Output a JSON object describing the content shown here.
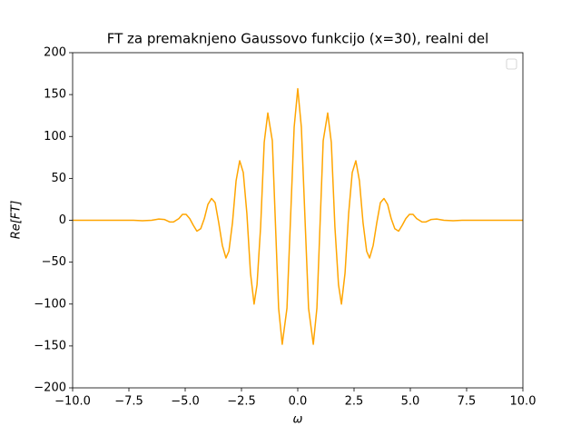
{
  "chart_data": {
    "type": "line",
    "title": "FT za premaknjeno Gaussovo funkcijo (x=30), realni del",
    "xlabel": "ω",
    "ylabel": "Re[FT]",
    "legend": "upper right",
    "xlim": [
      -10,
      10
    ],
    "ylim": [
      -200,
      200
    ],
    "xticks": [
      {
        "value": -10,
        "label": "−10.0"
      },
      {
        "value": -7.5,
        "label": "−7.5"
      },
      {
        "value": -5,
        "label": "−5.0"
      },
      {
        "value": -2.5,
        "label": "−2.5"
      },
      {
        "value": 0,
        "label": "0.0"
      },
      2.5,
      {
        "value": 5,
        "label": "5.0"
      },
      7.5,
      {
        "value": 10,
        "label": "10.0"
      }
    ],
    "yticks": [
      {
        "value": -200,
        "label": "−200"
      },
      {
        "value": -150,
        "label": "−150"
      },
      {
        "value": -100,
        "label": "−100"
      },
      {
        "value": -50,
        "label": "−50"
      },
      0,
      50,
      100,
      150,
      200
    ],
    "x": [
      -10,
      -7.3,
      -6.9,
      -6.49,
      -6.17,
      -5.93,
      -5.69,
      -5.52,
      -5.28,
      -5.12,
      -4.96,
      -4.8,
      -4.64,
      -4.48,
      -4.31,
      -4.15,
      -3.99,
      -3.83,
      -3.67,
      -3.51,
      -3.35,
      -3.19,
      -3.06,
      -2.9,
      -2.74,
      -2.58,
      -2.42,
      -2.26,
      -2.1,
      -1.94,
      -1.81,
      -1.65,
      -1.49,
      -1.33,
      -1.13,
      -0.85,
      -0.69,
      -0.48,
      -0.16,
      0,
      0.16,
      0.48,
      0.69,
      0.85,
      1.13,
      1.33,
      1.49,
      1.65,
      1.81,
      1.94,
      2.1,
      2.26,
      2.42,
      2.58,
      2.74,
      2.9,
      3.06,
      3.19,
      3.35,
      3.51,
      3.67,
      3.83,
      3.99,
      4.15,
      4.31,
      4.48,
      4.64,
      4.8,
      4.96,
      5.12,
      5.28,
      5.52,
      5.69,
      5.93,
      6.17,
      6.49,
      6.9,
      7.3,
      10
    ],
    "series": [
      {
        "color": "#ffa500",
        "values": [
          0,
          0,
          -0.5,
          0,
          1.5,
          1,
          -2,
          -2,
          2,
          7,
          7,
          2,
          -6,
          -13,
          -10,
          2,
          19,
          26,
          21,
          -3,
          -30,
          -45,
          -37,
          -3,
          47,
          71,
          57,
          8,
          -63,
          -100,
          -77,
          -8,
          93,
          128,
          95,
          -105,
          -148,
          -105,
          111,
          157,
          111,
          -105,
          -148,
          -105,
          95,
          128,
          93,
          -8,
          -77,
          -100,
          -63,
          8,
          57,
          71,
          47,
          -3,
          -37,
          -45,
          -30,
          -3,
          21,
          26,
          19,
          2,
          -10,
          -13,
          -6,
          2,
          7,
          7,
          2,
          -2,
          -2,
          1,
          1.5,
          0,
          -0.5,
          0,
          0
        ]
      }
    ]
  }
}
